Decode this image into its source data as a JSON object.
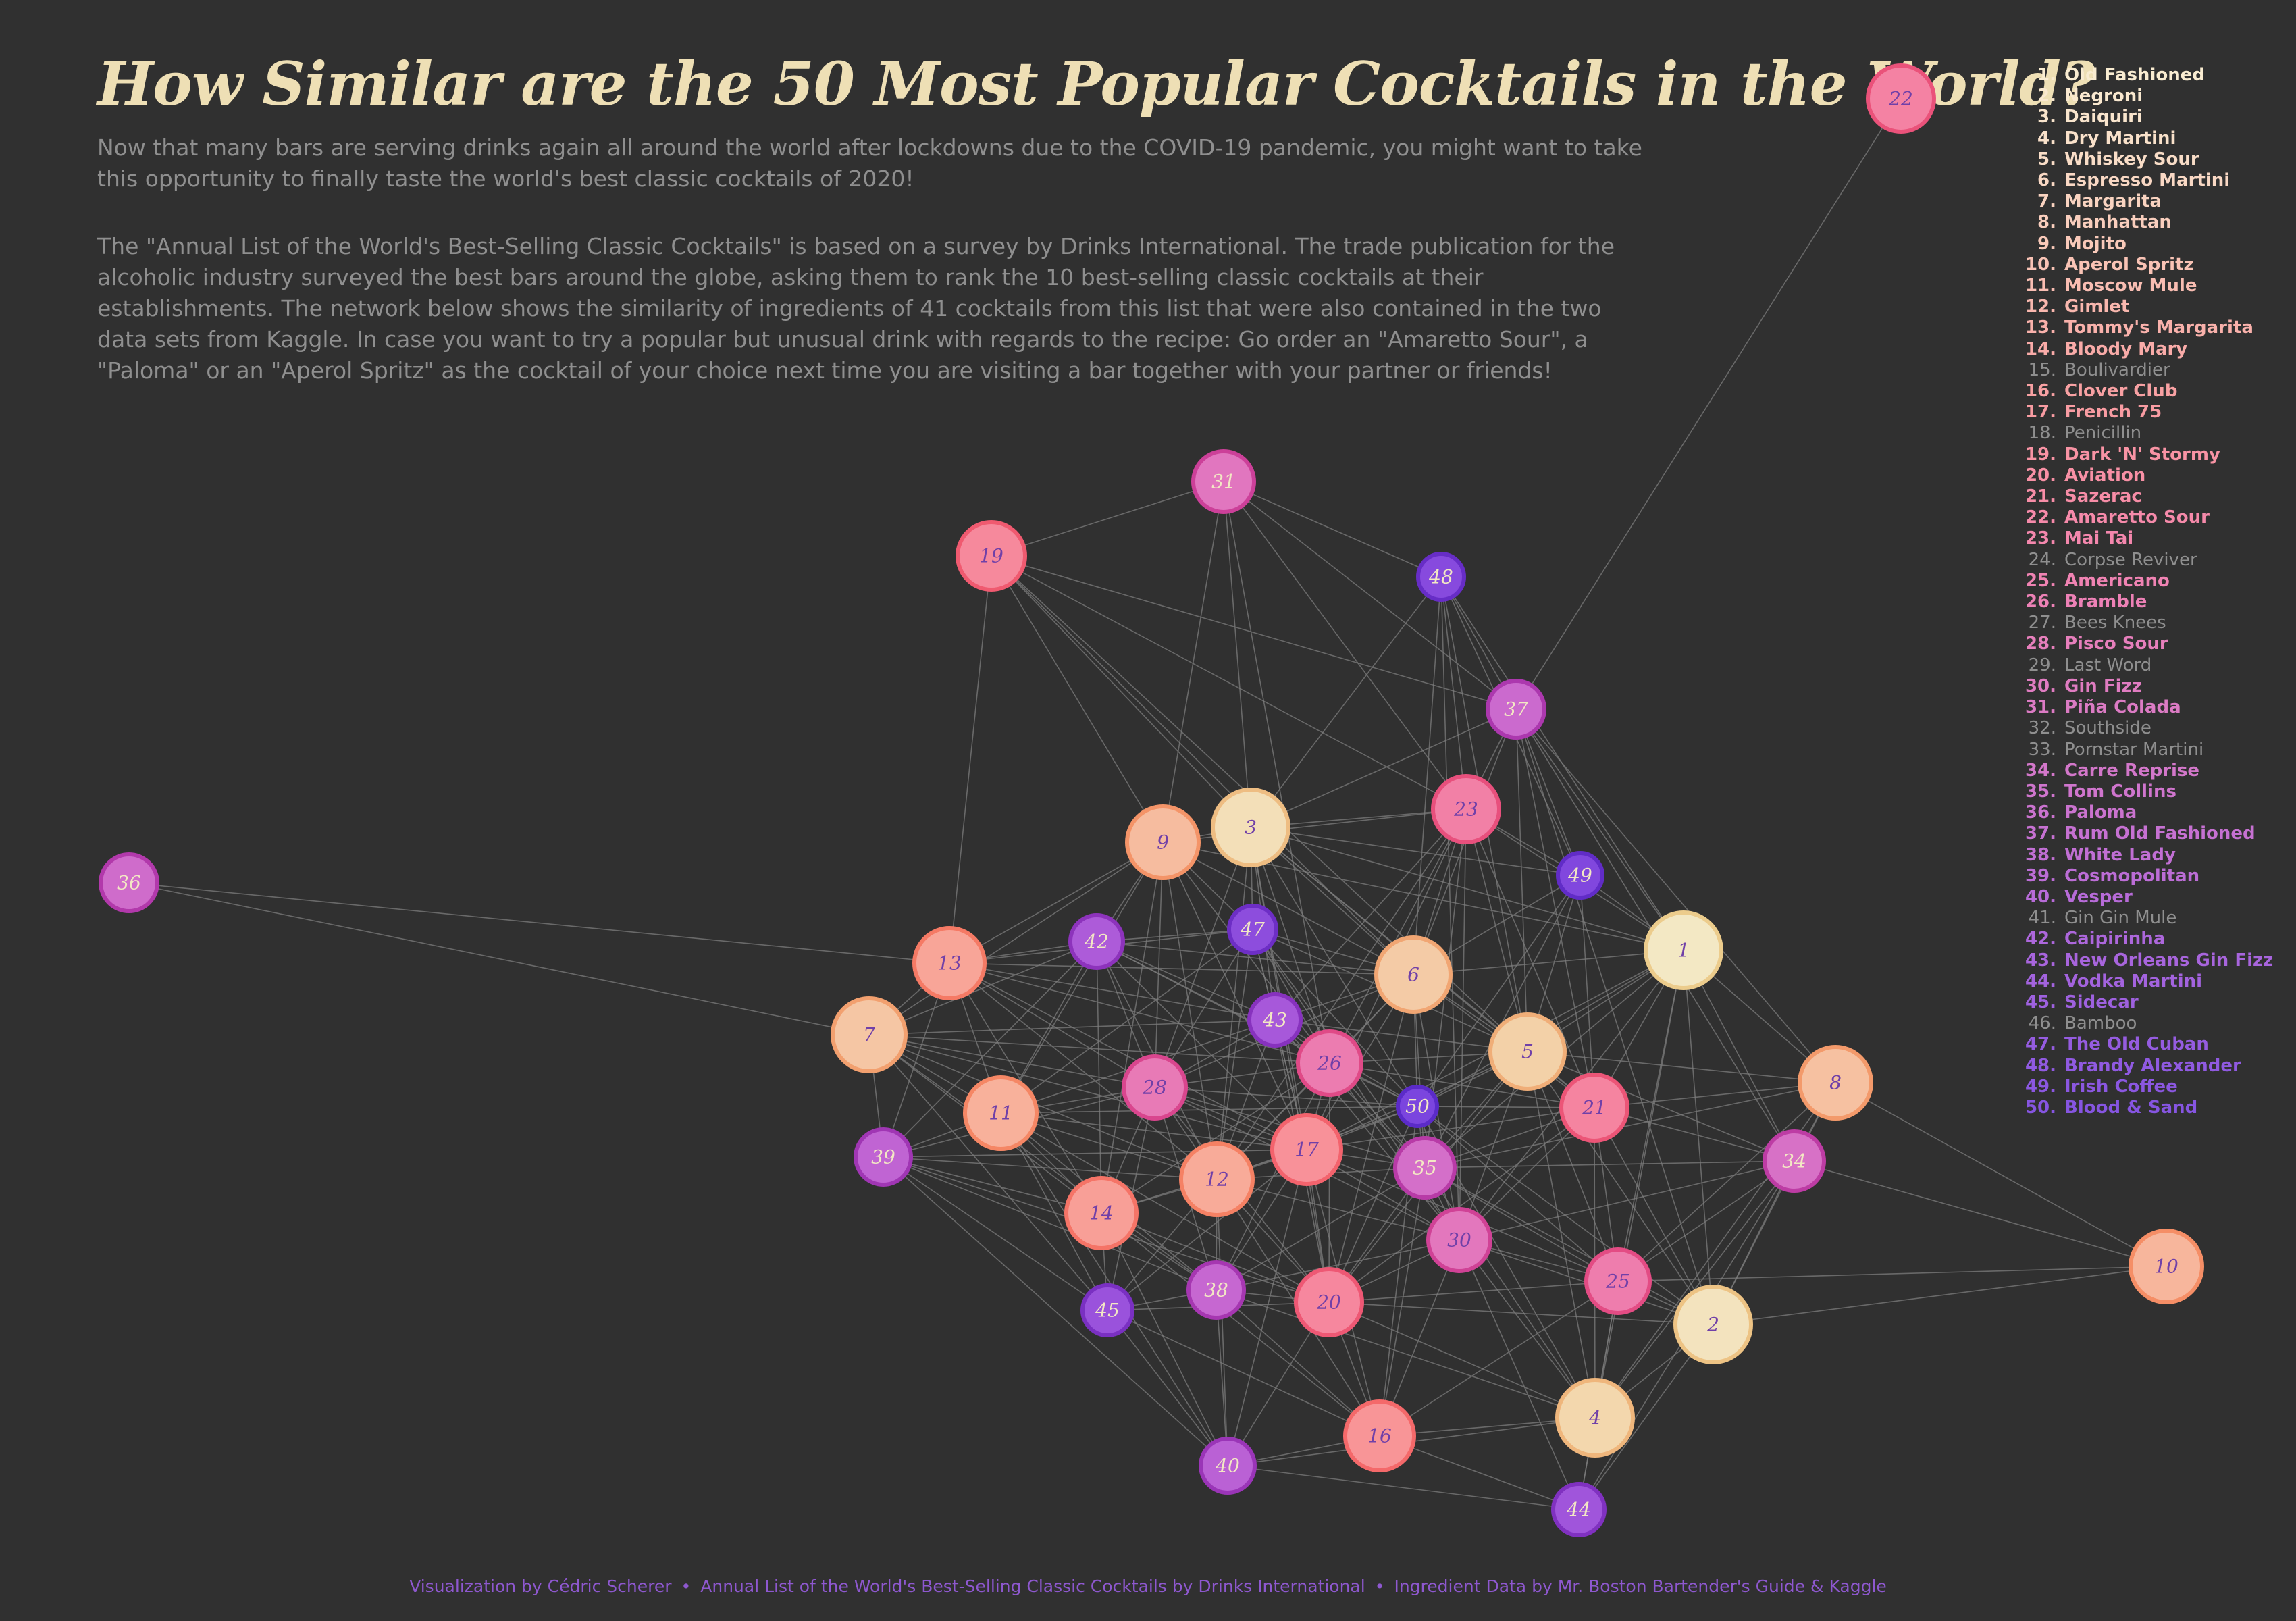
{
  "title": "How Similar are the 50 Most Popular Cocktails in the World?",
  "intro": {
    "paragraph_1": "Now that many bars are serving drinks again all around the world after lockdowns due to the COVID-19 pandemic, you might want to take this opportunity to finally taste the world's best classic cocktails of 2020!",
    "paragraph_2": "The \"Annual List of the World's Best-Selling Classic Cocktails\" is based on a survey by Drinks International. The trade publication for the alcoholic industry surveyed the best bars around the globe, asking them to rank the 10 best-selling classic cocktails at their establishments. The network below shows the similarity of ingredients of 41 cocktails from this list that were also contained in the two data sets from Kaggle. In case you want to try a popular but unusual drink with regards to the recipe: Go order an \"Amaretto Sour\", a \"Paloma\" or an \"Aperol Spritz\" as the cocktail of your choice next time you are visiting a bar together with your partner or friends!"
  },
  "legend": [
    {
      "rank": "1.",
      "name": "Old Fashioned",
      "color": "#f9ecd1",
      "in_network": true
    },
    {
      "rank": "2.",
      "name": "Negroni",
      "color": "#f9e8cf",
      "in_network": true
    },
    {
      "rank": "3.",
      "name": "Daiquiri",
      "color": "#f9e5cd",
      "in_network": true
    },
    {
      "rank": "4.",
      "name": "Dry Martini",
      "color": "#f9e1ca",
      "in_network": true
    },
    {
      "rank": "5.",
      "name": "Whiskey Sour",
      "color": "#f9ddc7",
      "in_network": true
    },
    {
      "rank": "6.",
      "name": "Espresso Martini",
      "color": "#f9d8c4",
      "in_network": true
    },
    {
      "rank": "7.",
      "name": "Margarita",
      "color": "#f9d3c0",
      "in_network": true
    },
    {
      "rank": "8.",
      "name": "Manhattan",
      "color": "#f9cebd",
      "in_network": true
    },
    {
      "rank": "9.",
      "name": "Mojito",
      "color": "#f9c9b9",
      "in_network": true
    },
    {
      "rank": "10.",
      "name": "Aperol Spritz",
      "color": "#f9c3b5",
      "in_network": true
    },
    {
      "rank": "11.",
      "name": "Moscow Mule",
      "color": "#f9bdb2",
      "in_network": true
    },
    {
      "rank": "12.",
      "name": "Gimlet",
      "color": "#f9b7ae",
      "in_network": true
    },
    {
      "rank": "13.",
      "name": "Tommy's Margarita",
      "color": "#f9b1ab",
      "in_network": true
    },
    {
      "rank": "14.",
      "name": "Bloody Mary",
      "color": "#f9aba8",
      "in_network": true
    },
    {
      "rank": "15.",
      "name": "Boulivardier",
      "color": "#8f8f8f",
      "in_network": false
    },
    {
      "rank": "16.",
      "name": "Clover Club",
      "color": "#f8a1a3",
      "in_network": true
    },
    {
      "rank": "17.",
      "name": "French 75",
      "color": "#f89ca2",
      "in_network": true
    },
    {
      "rank": "18.",
      "name": "Penicillin",
      "color": "#8f8f8f",
      "in_network": false
    },
    {
      "rank": "19.",
      "name": "Dark 'N' Stormy",
      "color": "#f893a4",
      "in_network": true
    },
    {
      "rank": "20.",
      "name": "Aviation",
      "color": "#f890a5",
      "in_network": true
    },
    {
      "rank": "21.",
      "name": "Sazerac",
      "color": "#f78da7",
      "in_network": true
    },
    {
      "rank": "22.",
      "name": "Amaretto Sour",
      "color": "#f68aaa",
      "in_network": true
    },
    {
      "rank": "23.",
      "name": "Mai Tai",
      "color": "#f487ad",
      "in_network": true
    },
    {
      "rank": "24.",
      "name": "Corpse Reviver",
      "color": "#8f8f8f",
      "in_network": false
    },
    {
      "rank": "25.",
      "name": "Americano",
      "color": "#f083b3",
      "in_network": true
    },
    {
      "rank": "26.",
      "name": "Bramble",
      "color": "#ed81b6",
      "in_network": true
    },
    {
      "rank": "27.",
      "name": "Bees Knees",
      "color": "#8f8f8f",
      "in_network": false
    },
    {
      "rank": "28.",
      "name": "Pisco Sour",
      "color": "#e77fbc",
      "in_network": true
    },
    {
      "rank": "29.",
      "name": "Last Word",
      "color": "#8f8f8f",
      "in_network": false
    },
    {
      "rank": "30.",
      "name": "Gin Fizz",
      "color": "#e07cc1",
      "in_network": true
    },
    {
      "rank": "31.",
      "name": "Piña Colada",
      "color": "#dc7bc4",
      "in_network": true
    },
    {
      "rank": "32.",
      "name": "Southside",
      "color": "#8f8f8f",
      "in_network": false
    },
    {
      "rank": "33.",
      "name": "Pornstar Martini",
      "color": "#8f8f8f",
      "in_network": false
    },
    {
      "rank": "34.",
      "name": "Carre Reprise",
      "color": "#d377ca",
      "in_network": true
    },
    {
      "rank": "35.",
      "name": "Tom Collins",
      "color": "#cf75cd",
      "in_network": true
    },
    {
      "rank": "36.",
      "name": "Paloma",
      "color": "#ca73cf",
      "in_network": true
    },
    {
      "rank": "37.",
      "name": "Rum Old Fashioned",
      "color": "#c671d2",
      "in_network": true
    },
    {
      "rank": "38.",
      "name": "White Lady",
      "color": "#c16fd4",
      "in_network": true
    },
    {
      "rank": "39.",
      "name": "Cosmopolitan",
      "color": "#bc6dd6",
      "in_network": true
    },
    {
      "rank": "40.",
      "name": "Vesper",
      "color": "#b76bd8",
      "in_network": true
    },
    {
      "rank": "41.",
      "name": "Gin Gin Mule",
      "color": "#8f8f8f",
      "in_network": false
    },
    {
      "rank": "42.",
      "name": "Caipirinha",
      "color": "#ad67dc",
      "in_network": true
    },
    {
      "rank": "43.",
      "name": "New Orleans Gin Fizz",
      "color": "#a865dd",
      "in_network": true
    },
    {
      "rank": "44.",
      "name": "Vodka Martini",
      "color": "#a363de",
      "in_network": true
    },
    {
      "rank": "45.",
      "name": "Sidecar",
      "color": "#9e61df",
      "in_network": true
    },
    {
      "rank": "46.",
      "name": "Bamboo",
      "color": "#8f8f8f",
      "in_network": false
    },
    {
      "rank": "47.",
      "name": "The Old Cuban",
      "color": "#955ce0",
      "in_network": true
    },
    {
      "rank": "48.",
      "name": "Brandy Alexander",
      "color": "#905ae1",
      "in_network": true
    },
    {
      "rank": "49.",
      "name": "Irish Coffee",
      "color": "#8b57e1",
      "in_network": true
    },
    {
      "rank": "50.",
      "name": "Blood & Sand",
      "color": "#8655e1",
      "in_network": true
    }
  ],
  "nodes": [
    {
      "label": "1",
      "fill": "#f3e8c4",
      "stroke": "#eccc8c",
      "text": "#7040a8"
    },
    {
      "label": "2",
      "fill": "#f3e3be",
      "stroke": "#edc384",
      "text": "#7040a8"
    },
    {
      "label": "3",
      "fill": "#f3dfb8",
      "stroke": "#eebd82",
      "text": "#7040a8"
    },
    {
      "label": "4",
      "fill": "#f3d7ad",
      "stroke": "#efb67c",
      "text": "#7040a8"
    },
    {
      "label": "5",
      "fill": "#f3d1a8",
      "stroke": "#f0ae78",
      "text": "#7040a8"
    },
    {
      "label": "6",
      "fill": "#f4cba6",
      "stroke": "#f1a673",
      "text": "#7040a8"
    },
    {
      "label": "7",
      "fill": "#f5c6a4",
      "stroke": "#f2a06f",
      "text": "#7040a8"
    },
    {
      "label": "8",
      "fill": "#f6c1a1",
      "stroke": "#f39a6b",
      "text": "#7040a8"
    },
    {
      "label": "9",
      "fill": "#f6bc9f",
      "stroke": "#f49468",
      "text": "#7040a8"
    },
    {
      "label": "10",
      "fill": "#f7b69c",
      "stroke": "#f58e66",
      "text": "#7040a8"
    },
    {
      "label": "11",
      "fill": "#f8b19b",
      "stroke": "#f58765",
      "text": "#7040a8"
    },
    {
      "label": "12",
      "fill": "#f8ab99",
      "stroke": "#f58164",
      "text": "#7040a8"
    },
    {
      "label": "13",
      "fill": "#f8a598",
      "stroke": "#f57a65",
      "text": "#7040a8"
    },
    {
      "label": "14",
      "fill": "#f89f97",
      "stroke": "#f57467",
      "text": "#7040a8"
    },
    {
      "label": "16",
      "fill": "#f89597",
      "stroke": "#f4696a",
      "text": "#7040a8"
    },
    {
      "label": "17",
      "fill": "#f89199",
      "stroke": "#f3636d",
      "text": "#7040a8"
    },
    {
      "label": "19",
      "fill": "#f6899c",
      "stroke": "#f05a70",
      "text": "#7040a8"
    },
    {
      "label": "20",
      "fill": "#f6879e",
      "stroke": "#ee5874",
      "text": "#7040a8"
    },
    {
      "label": "21",
      "fill": "#f584a0",
      "stroke": "#ec5577",
      "text": "#7040a8"
    },
    {
      "label": "22",
      "fill": "#f482a3",
      "stroke": "#ea527a",
      "text": "#7040a8"
    },
    {
      "label": "23",
      "fill": "#f280a6",
      "stroke": "#e8507d",
      "text": "#7040a8"
    },
    {
      "label": "25",
      "fill": "#ee7dad",
      "stroke": "#e34c84",
      "text": "#7040a8"
    },
    {
      "label": "26",
      "fill": "#ec7cb0",
      "stroke": "#e04a87",
      "text": "#7040a8"
    },
    {
      "label": "28",
      "fill": "#e87ab6",
      "stroke": "#d9468e",
      "text": "#7040a8"
    },
    {
      "label": "30",
      "fill": "#e377bd",
      "stroke": "#d04296",
      "text": "#7040a8"
    },
    {
      "label": "31",
      "fill": "#e176bf",
      "stroke": "#cc4099",
      "text": "#f3e8c4"
    },
    {
      "label": "34",
      "fill": "#d771c6",
      "stroke": "#bd3ca4",
      "text": "#f3e8c4"
    },
    {
      "label": "35",
      "fill": "#d46fc9",
      "stroke": "#b83ba7",
      "text": "#f3e8c4"
    },
    {
      "label": "36",
      "fill": "#cf6ccb",
      "stroke": "#b239ab",
      "text": "#f3e8c4"
    },
    {
      "label": "37",
      "fill": "#cb6ace",
      "stroke": "#ac38ae",
      "text": "#f3e8c4"
    },
    {
      "label": "38",
      "fill": "#c667d1",
      "stroke": "#a637b1",
      "text": "#f3e8c4"
    },
    {
      "label": "39",
      "fill": "#c064d3",
      "stroke": "#a036b4",
      "text": "#f3e8c4"
    },
    {
      "label": "40",
      "fill": "#ba61d5",
      "stroke": "#9a35b7",
      "text": "#f3e8c4"
    },
    {
      "label": "42",
      "fill": "#ad5bd9",
      "stroke": "#8d33bc",
      "text": "#f3e8c4"
    },
    {
      "label": "43",
      "fill": "#a758da",
      "stroke": "#8732be",
      "text": "#f3e8c4"
    },
    {
      "label": "44",
      "fill": "#a055db",
      "stroke": "#8031c0",
      "text": "#f3e8c4"
    },
    {
      "label": "45",
      "fill": "#9a52dc",
      "stroke": "#7a30c2",
      "text": "#f3e8c4"
    },
    {
      "label": "47",
      "fill": "#8d4ddd",
      "stroke": "#6d2ec5",
      "text": "#f3e8c4"
    },
    {
      "label": "48",
      "fill": "#874ade",
      "stroke": "#672dc6",
      "text": "#f3e8c4"
    },
    {
      "label": "49",
      "fill": "#8147de",
      "stroke": "#612cc7",
      "text": "#f3e8c4"
    },
    {
      "label": "50",
      "fill": "#7b45de",
      "stroke": "#5b2bc8",
      "text": "#f3e8c4"
    }
  ],
  "footer": {
    "credit": "Visualization by Cédric Scherer",
    "source": "Annual List of the World's Best-Selling Classic Cocktails by Drinks International",
    "data": "Ingredient Data by Mr. Boston Bartender's Guide & Kaggle",
    "separator": "•"
  }
}
